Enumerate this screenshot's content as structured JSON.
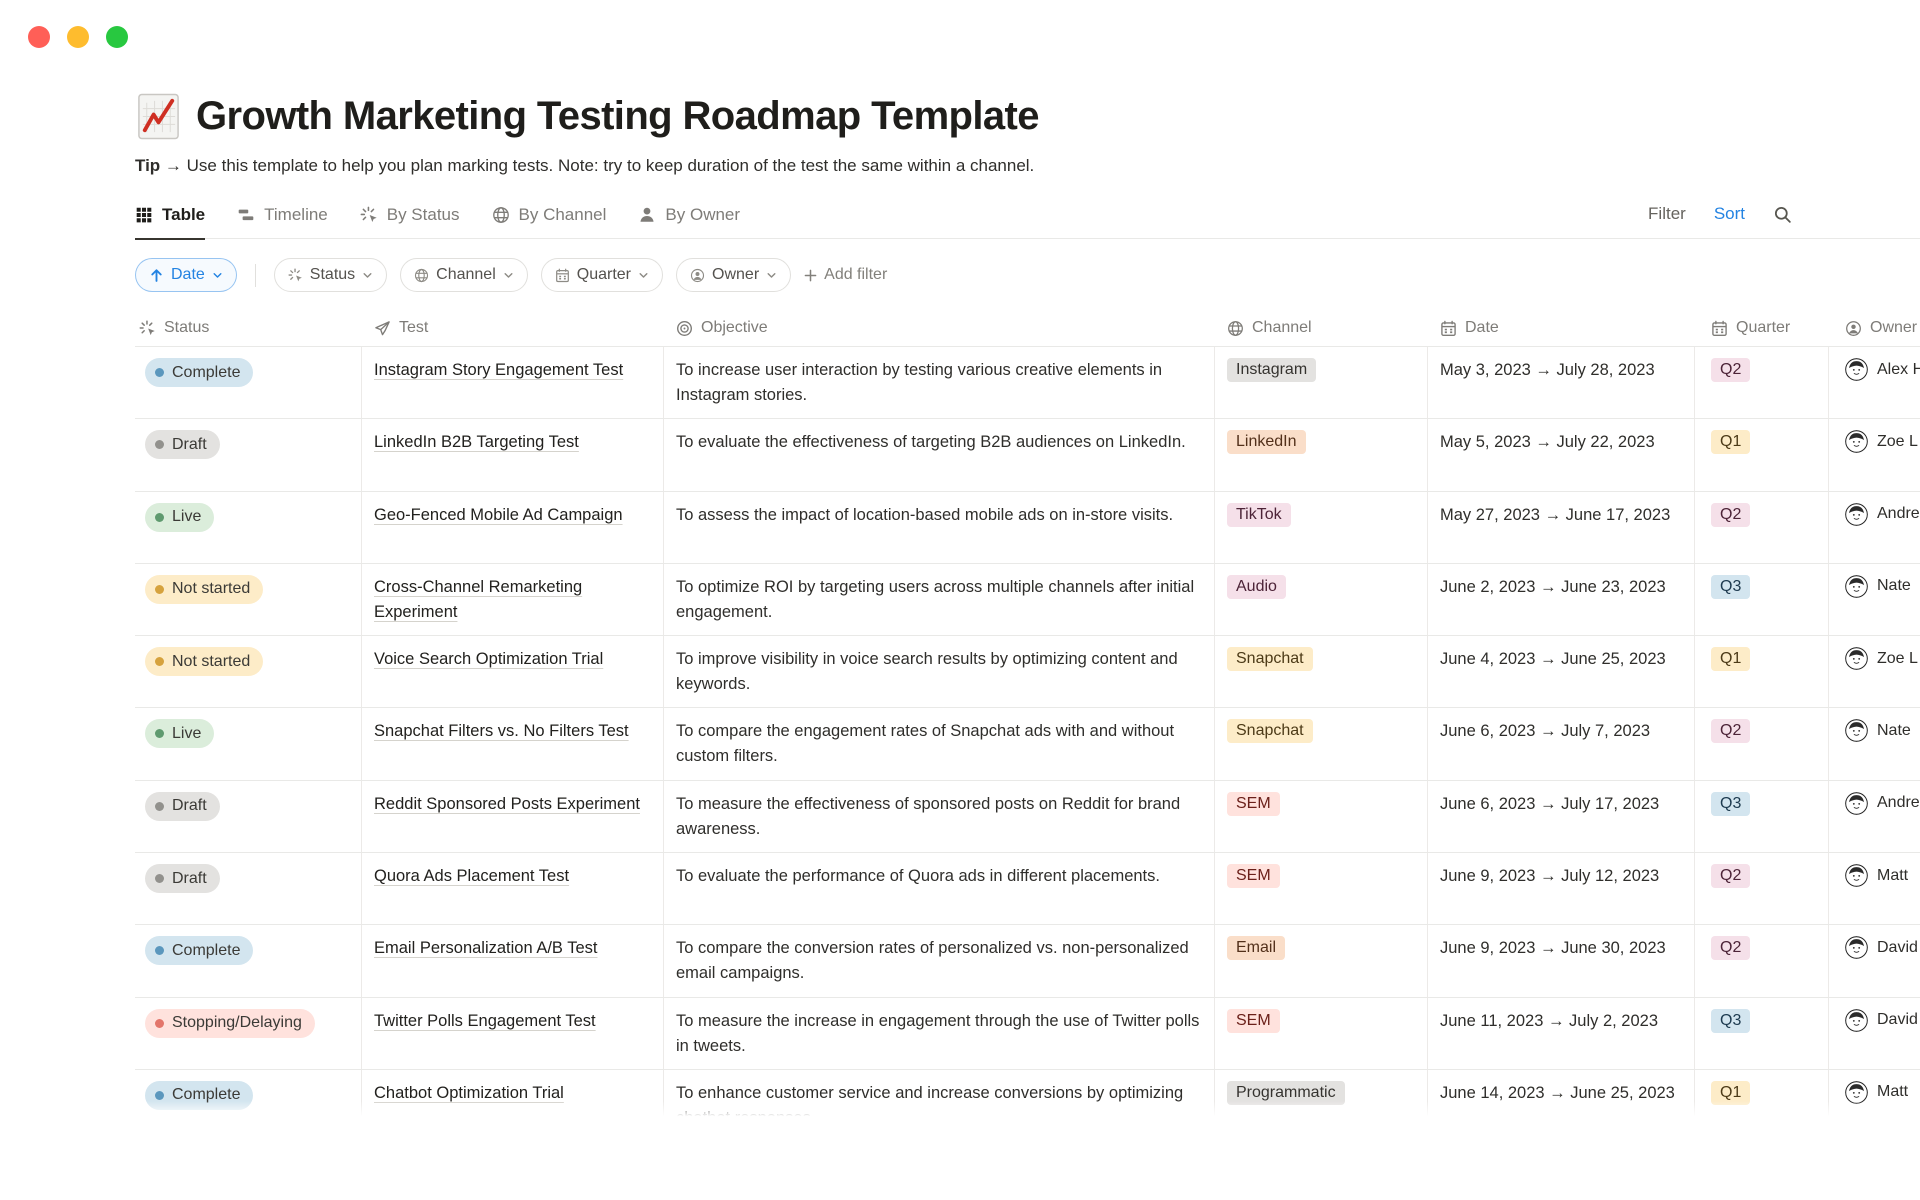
{
  "page": {
    "icon": "chart-increasing",
    "title": "Growth Marketing Testing Roadmap Template",
    "tip_label": "Tip",
    "tip_arrow": "→",
    "tip_text": "Use this template to help you plan marking tests. Note: try to keep duration of the test the same within a channel."
  },
  "tabs": [
    {
      "label": "Table",
      "icon": "table-icon",
      "active": true
    },
    {
      "label": "Timeline",
      "icon": "timeline-icon",
      "active": false
    },
    {
      "label": "By Status",
      "icon": "status-icon",
      "active": false
    },
    {
      "label": "By Channel",
      "icon": "globe-icon",
      "active": false
    },
    {
      "label": "By Owner",
      "icon": "person-icon",
      "active": false
    }
  ],
  "toolbar": {
    "filter": "Filter",
    "sort": "Sort"
  },
  "filter_bar": {
    "sort_chip": {
      "label": "Date",
      "icon": "arrow-up-icon"
    },
    "chips": [
      {
        "label": "Status",
        "icon": "status-icon"
      },
      {
        "label": "Channel",
        "icon": "globe-icon"
      },
      {
        "label": "Quarter",
        "icon": "calendar-icon"
      },
      {
        "label": "Owner",
        "icon": "person-circle-icon"
      }
    ],
    "add_filter": "Add filter"
  },
  "columns": [
    {
      "label": "Status",
      "icon": "status-icon"
    },
    {
      "label": "Test",
      "icon": "send-icon"
    },
    {
      "label": "Objective",
      "icon": "target-icon"
    },
    {
      "label": "Channel",
      "icon": "globe-icon"
    },
    {
      "label": "Date",
      "icon": "calendar-icon"
    },
    {
      "label": "Quarter",
      "icon": "calendar-icon"
    },
    {
      "label": "Owner",
      "icon": "person-circle-icon"
    }
  ],
  "rows": [
    {
      "status": {
        "label": "Complete",
        "color": "blue"
      },
      "test": "Instagram Story Engagement Test",
      "objective": "To increase user interaction by testing various creative elements in Instagram stories.",
      "channel": {
        "label": "Instagram",
        "color": "gray"
      },
      "date": "May 3, 2023 → July 28, 2023",
      "quarter": {
        "label": "Q2",
        "color": "pink"
      },
      "owner": "Alex H"
    },
    {
      "status": {
        "label": "Draft",
        "color": "gray"
      },
      "test": "LinkedIn B2B Targeting Test",
      "objective": "To evaluate the effectiveness of targeting B2B audiences on LinkedIn.",
      "channel": {
        "label": "LinkedIn",
        "color": "orange"
      },
      "date": "May 5, 2023 → July 22, 2023",
      "quarter": {
        "label": "Q1",
        "color": "yellow"
      },
      "owner": "Zoe L"
    },
    {
      "status": {
        "label": "Live",
        "color": "green"
      },
      "test": "Geo-Fenced Mobile Ad Campaign",
      "objective": "To assess the impact of location-based mobile ads on in-store visits.",
      "channel": {
        "label": "TikTok",
        "color": "pink"
      },
      "date": "May 27, 2023 → June 17, 2023",
      "quarter": {
        "label": "Q2",
        "color": "pink"
      },
      "owner": "Andrea"
    },
    {
      "status": {
        "label": "Not started",
        "color": "yellow"
      },
      "test": "Cross-Channel Remarketing Experiment",
      "objective": "To optimize ROI by targeting users across multiple channels after initial engagement.",
      "channel": {
        "label": "Audio",
        "color": "pink"
      },
      "date": "June 2, 2023 → June 23, 2023",
      "quarter": {
        "label": "Q3",
        "color": "blue"
      },
      "owner": "Nate"
    },
    {
      "status": {
        "label": "Not started",
        "color": "yellow"
      },
      "test": "Voice Search Optimization Trial",
      "objective": "To improve visibility in voice search results by optimizing content and keywords.",
      "channel": {
        "label": "Snapchat",
        "color": "yellow"
      },
      "date": "June 4, 2023 → June 25, 2023",
      "quarter": {
        "label": "Q1",
        "color": "yellow"
      },
      "owner": "Zoe L"
    },
    {
      "status": {
        "label": "Live",
        "color": "green"
      },
      "test": "Snapchat Filters vs. No Filters Test",
      "objective": "To compare the engagement rates of Snapchat ads with and without custom filters.",
      "channel": {
        "label": "Snapchat",
        "color": "yellow"
      },
      "date": "June 6, 2023 → July 7, 2023",
      "quarter": {
        "label": "Q2",
        "color": "pink"
      },
      "owner": "Nate"
    },
    {
      "status": {
        "label": "Draft",
        "color": "gray"
      },
      "test": "Reddit Sponsored Posts Experiment",
      "objective": "To measure the effectiveness of sponsored posts on Reddit for brand awareness.",
      "channel": {
        "label": "SEM",
        "color": "red"
      },
      "date": "June 6, 2023 → July 17, 2023",
      "quarter": {
        "label": "Q3",
        "color": "blue"
      },
      "owner": "Andrea"
    },
    {
      "status": {
        "label": "Draft",
        "color": "gray"
      },
      "test": "Quora Ads Placement Test",
      "objective": "To evaluate the performance of Quora ads in different placements.",
      "channel": {
        "label": "SEM",
        "color": "red"
      },
      "date": "June 9, 2023 → July 12, 2023",
      "quarter": {
        "label": "Q2",
        "color": "pink"
      },
      "owner": "Matt"
    },
    {
      "status": {
        "label": "Complete",
        "color": "blue"
      },
      "test": "Email Personalization A/B Test",
      "objective": "To compare the conversion rates of personalized vs. non-personalized email campaigns.",
      "channel": {
        "label": "Email",
        "color": "orange"
      },
      "date": "June 9, 2023 → June 30, 2023",
      "quarter": {
        "label": "Q2",
        "color": "pink"
      },
      "owner": "David"
    },
    {
      "status": {
        "label": "Stopping/Delaying",
        "color": "red"
      },
      "test": "Twitter Polls Engagement Test",
      "objective": "To measure the increase in engagement through the use of Twitter polls in tweets.",
      "channel": {
        "label": "SEM",
        "color": "red"
      },
      "date": "June 11, 2023 → July 2, 2023",
      "quarter": {
        "label": "Q3",
        "color": "blue"
      },
      "owner": "David"
    },
    {
      "status": {
        "label": "Complete",
        "color": "blue"
      },
      "test": "Chatbot Optimization Trial",
      "objective": "To enhance customer service and increase conversions by optimizing chatbot responses.",
      "channel": {
        "label": "Programmatic",
        "color": "gray"
      },
      "date": "June 14, 2023 → June 25, 2023",
      "quarter": {
        "label": "Q1",
        "color": "yellow"
      },
      "owner": "Matt"
    }
  ],
  "colors": {
    "accent_blue": "#2383e2",
    "status": {
      "blue": {
        "bg": "#d3e5ef",
        "dot": "#5b97bd"
      },
      "gray": {
        "bg": "#e3e2e0",
        "dot": "#92918d"
      },
      "green": {
        "bg": "#dbeddb",
        "dot": "#5f9a6f"
      },
      "yellow": {
        "bg": "#fdecc8",
        "dot": "#d6a23d"
      },
      "red": {
        "bg": "#ffe2dd",
        "dot": "#e3756a"
      }
    },
    "tags": {
      "gray": "#e3e2e0",
      "orange": "#fadec9",
      "pink": "#f5e0e9",
      "yellow": "#fdecc8",
      "red": "#ffe2dd",
      "blue": "#d3e5ef"
    }
  }
}
